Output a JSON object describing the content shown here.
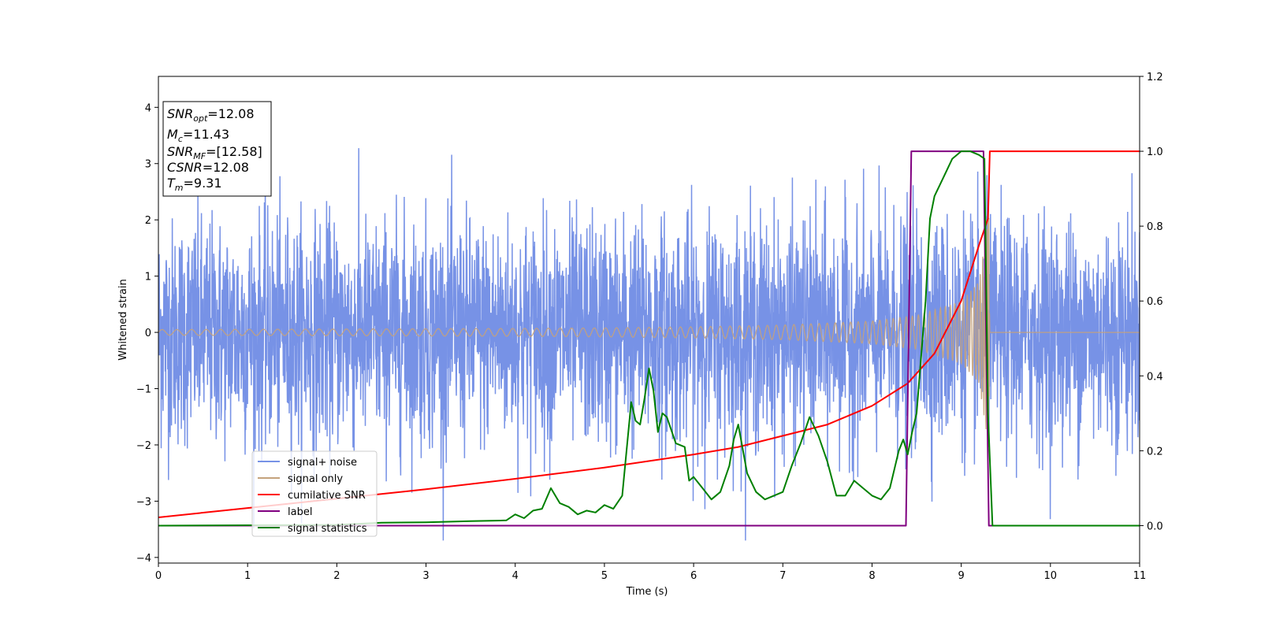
{
  "chart_data": {
    "type": "line",
    "xlabel": "Time (s)",
    "ylabel": "Whitened strain",
    "xlim": [
      0,
      11
    ],
    "ylim": [
      -4.1,
      4.55
    ],
    "y2lim": [
      -0.1,
      1.2
    ],
    "xticks": [
      "0",
      "1",
      "2",
      "3",
      "4",
      "5",
      "6",
      "7",
      "8",
      "9",
      "10",
      "11"
    ],
    "yticks": [
      "−4",
      "−3",
      "−2",
      "−1",
      "0",
      "1",
      "2",
      "3",
      "4"
    ],
    "y2ticks": [
      "0.0",
      "0.2",
      "0.4",
      "0.6",
      "0.8",
      "1.0",
      "1.2"
    ],
    "legend_position": "lower-left",
    "info_box": {
      "lines": [
        {
          "name": "SNR",
          "sub": "opt",
          "value": "=12.08"
        },
        {
          "name": "M",
          "sub": "c",
          "value": "=11.43"
        },
        {
          "name": "SNR",
          "sub": "MF",
          "value": "=[12.58]"
        },
        {
          "name": "CSNR",
          "sub": "",
          "value": "=12.08"
        },
        {
          "name": "T",
          "sub": "m",
          "value": "=9.31"
        }
      ]
    },
    "series": [
      {
        "name": "signal+ noise",
        "axis": "left",
        "color": "#7792e6",
        "kind": "noise",
        "noise_sigma": 1.0,
        "noise_max_abs": 3.7
      },
      {
        "name": "signal only",
        "axis": "left",
        "color": "#c4a27c",
        "kind": "chirp",
        "start_amplitude": 0.05,
        "peak_amplitude": 2.1,
        "merger_time": 9.31,
        "x": [
          0,
          2,
          4,
          5,
          6,
          7,
          8,
          8.5,
          9,
          9.2,
          9.31,
          9.32,
          11
        ],
        "amplitude": [
          0.05,
          0.06,
          0.07,
          0.08,
          0.1,
          0.13,
          0.2,
          0.3,
          0.55,
          0.9,
          2.1,
          0.0,
          0.0
        ]
      },
      {
        "name": "cumilative SNR",
        "axis": "right",
        "color": "#ff0000",
        "x": [
          0,
          1,
          2,
          3,
          4,
          5,
          6,
          6.5,
          7,
          7.5,
          8,
          8.4,
          8.7,
          9.0,
          9.2,
          9.3,
          9.32,
          11
        ],
        "y": [
          0.022,
          0.047,
          0.072,
          0.097,
          0.125,
          0.155,
          0.19,
          0.21,
          0.24,
          0.27,
          0.32,
          0.38,
          0.46,
          0.6,
          0.75,
          0.82,
          1.0,
          1.0
        ]
      },
      {
        "name": "label",
        "axis": "right",
        "color": "#800080",
        "x": [
          0,
          8.38,
          8.44,
          9.25,
          9.31,
          11
        ],
        "y": [
          0,
          0,
          1,
          1,
          0,
          0
        ]
      },
      {
        "name": "signal statistics",
        "axis": "right",
        "color": "#008000",
        "x": [
          0,
          1,
          2,
          2.5,
          3,
          3.5,
          3.9,
          4.0,
          4.1,
          4.2,
          4.3,
          4.4,
          4.5,
          4.6,
          4.7,
          4.8,
          4.9,
          5.0,
          5.1,
          5.2,
          5.3,
          5.35,
          5.4,
          5.45,
          5.5,
          5.55,
          5.6,
          5.65,
          5.7,
          5.8,
          5.9,
          5.95,
          6.0,
          6.1,
          6.2,
          6.3,
          6.4,
          6.45,
          6.5,
          6.6,
          6.7,
          6.8,
          6.9,
          7.0,
          7.1,
          7.2,
          7.3,
          7.4,
          7.5,
          7.6,
          7.7,
          7.8,
          7.9,
          8.0,
          8.1,
          8.2,
          8.3,
          8.35,
          8.4,
          8.45,
          8.5,
          8.55,
          8.6,
          8.65,
          8.7,
          8.8,
          8.9,
          9.0,
          9.1,
          9.2,
          9.26,
          9.3,
          9.35,
          11
        ],
        "y": [
          0,
          0.001,
          0.002,
          0.008,
          0.009,
          0.012,
          0.014,
          0.03,
          0.02,
          0.04,
          0.045,
          0.1,
          0.06,
          0.05,
          0.03,
          0.04,
          0.035,
          0.055,
          0.045,
          0.08,
          0.33,
          0.28,
          0.27,
          0.34,
          0.42,
          0.36,
          0.25,
          0.3,
          0.29,
          0.22,
          0.21,
          0.12,
          0.13,
          0.1,
          0.07,
          0.09,
          0.16,
          0.23,
          0.27,
          0.14,
          0.09,
          0.07,
          0.08,
          0.09,
          0.16,
          0.22,
          0.29,
          0.24,
          0.17,
          0.08,
          0.08,
          0.12,
          0.1,
          0.08,
          0.07,
          0.1,
          0.2,
          0.23,
          0.19,
          0.25,
          0.3,
          0.45,
          0.6,
          0.82,
          0.88,
          0.93,
          0.98,
          1.0,
          1.0,
          0.99,
          0.98,
          0.3,
          0.0,
          0.0
        ]
      }
    ]
  }
}
